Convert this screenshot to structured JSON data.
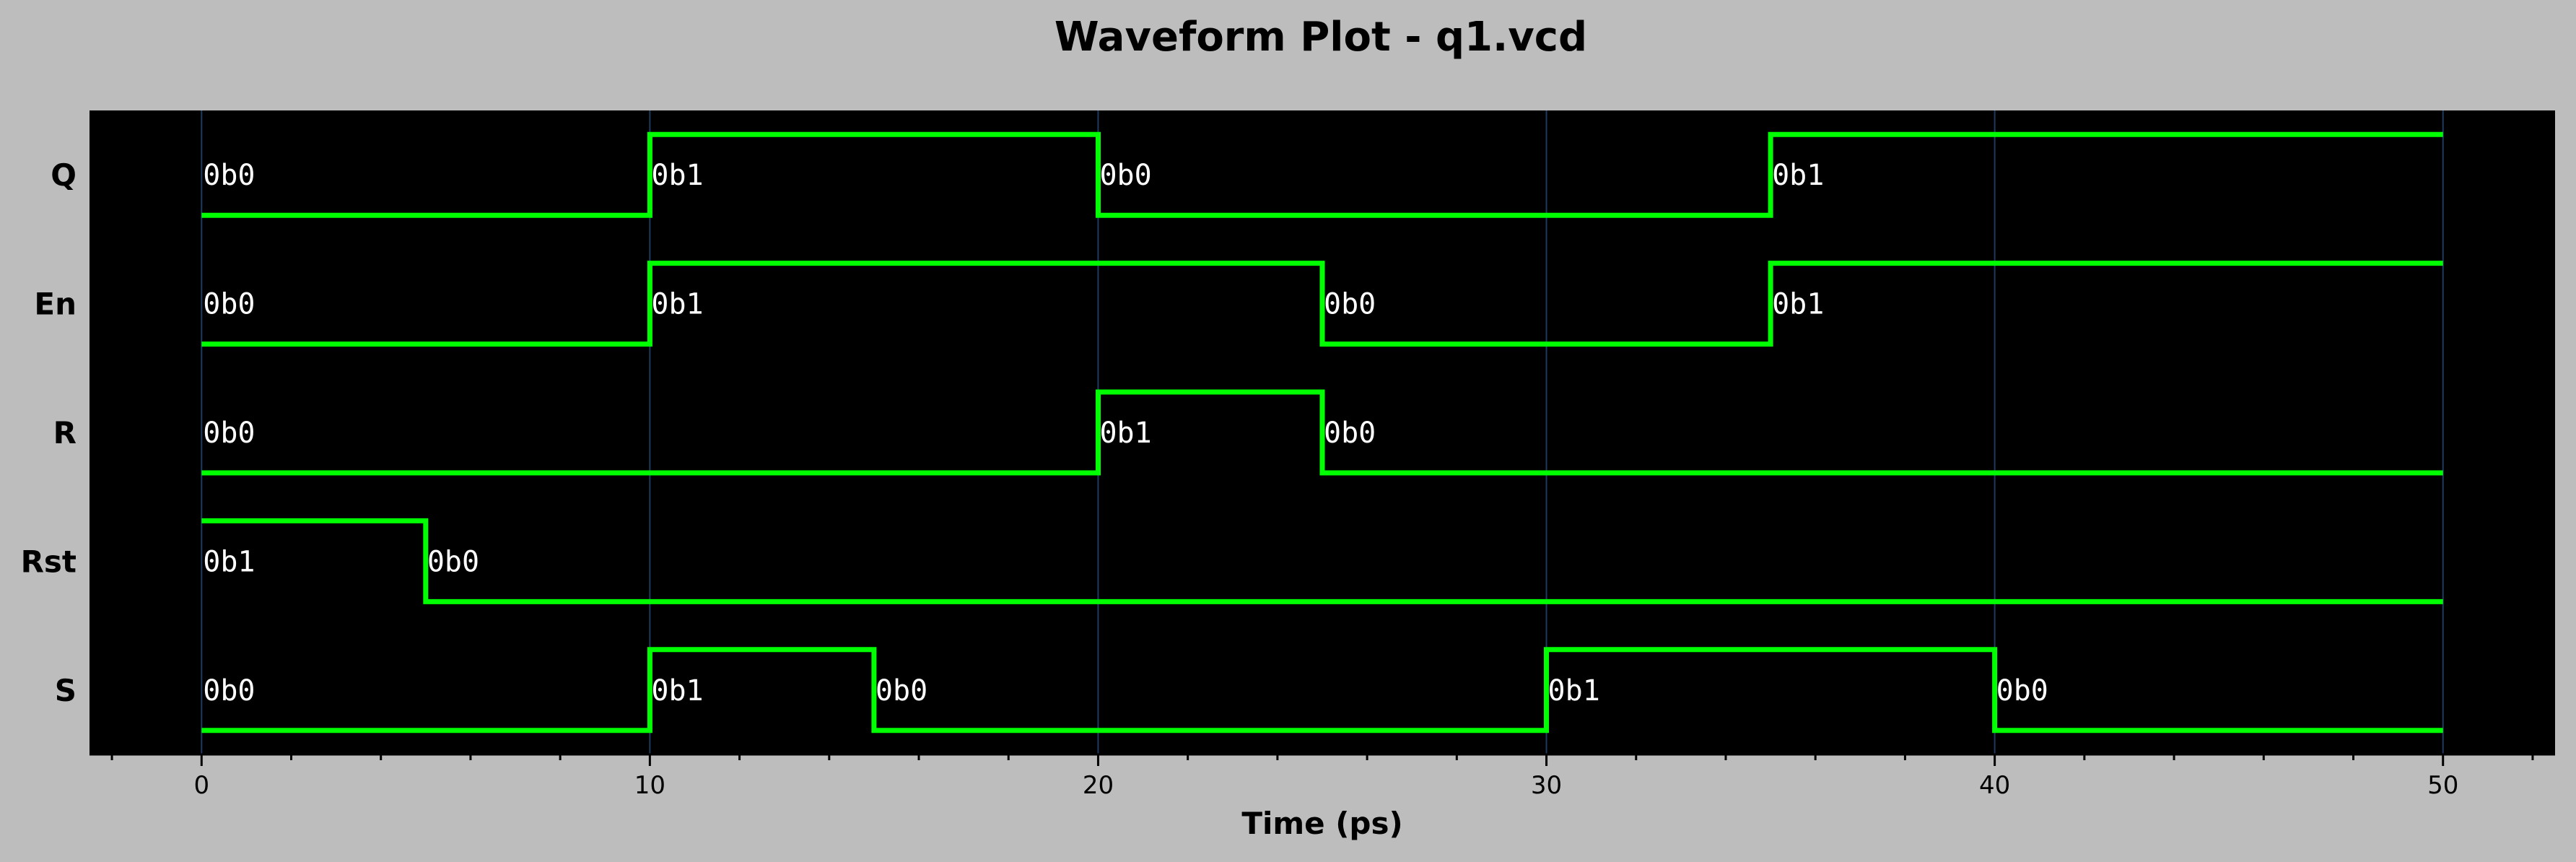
{
  "chart_data": {
    "type": "line",
    "title": "Waveform Plot - q1.vcd",
    "xlabel": "Time (ps)",
    "ylabel": "",
    "xlim": [
      -2.5,
      52.5
    ],
    "xticks": [
      0,
      10,
      20,
      30,
      40,
      50
    ],
    "xtick_labels": [
      "0",
      "10",
      "20",
      "30",
      "40",
      "50"
    ],
    "minor_tick_step": 2,
    "grid": true,
    "series": [
      {
        "name": "Q",
        "changes": [
          {
            "t": 0,
            "v": 0,
            "label": "0b0"
          },
          {
            "t": 10,
            "v": 1,
            "label": "0b1"
          },
          {
            "t": 20,
            "v": 0,
            "label": "0b0"
          },
          {
            "t": 35,
            "v": 1,
            "label": "0b1"
          }
        ],
        "end": 50
      },
      {
        "name": "En",
        "changes": [
          {
            "t": 0,
            "v": 0,
            "label": "0b0"
          },
          {
            "t": 10,
            "v": 1,
            "label": "0b1"
          },
          {
            "t": 25,
            "v": 0,
            "label": "0b0"
          },
          {
            "t": 35,
            "v": 1,
            "label": "0b1"
          }
        ],
        "end": 50
      },
      {
        "name": "R",
        "changes": [
          {
            "t": 0,
            "v": 0,
            "label": "0b0"
          },
          {
            "t": 20,
            "v": 1,
            "label": "0b1"
          },
          {
            "t": 25,
            "v": 0,
            "label": "0b0"
          }
        ],
        "end": 50
      },
      {
        "name": "Rst",
        "changes": [
          {
            "t": 0,
            "v": 1,
            "label": "0b1"
          },
          {
            "t": 5,
            "v": 0,
            "label": "0b0"
          }
        ],
        "end": 50
      },
      {
        "name": "S",
        "changes": [
          {
            "t": 0,
            "v": 0,
            "label": "0b0"
          },
          {
            "t": 10,
            "v": 1,
            "label": "0b1"
          },
          {
            "t": 15,
            "v": 0,
            "label": "0b0"
          },
          {
            "t": 30,
            "v": 1,
            "label": "0b1"
          },
          {
            "t": 40,
            "v": 0,
            "label": "0b0"
          }
        ],
        "end": 50
      }
    ]
  },
  "colors": {
    "figure_background": "#bdbdbd",
    "plot_background": "#000000",
    "waveform": "#00ff00",
    "value_text": "#ffffff",
    "grid": "#1f3a5f"
  }
}
